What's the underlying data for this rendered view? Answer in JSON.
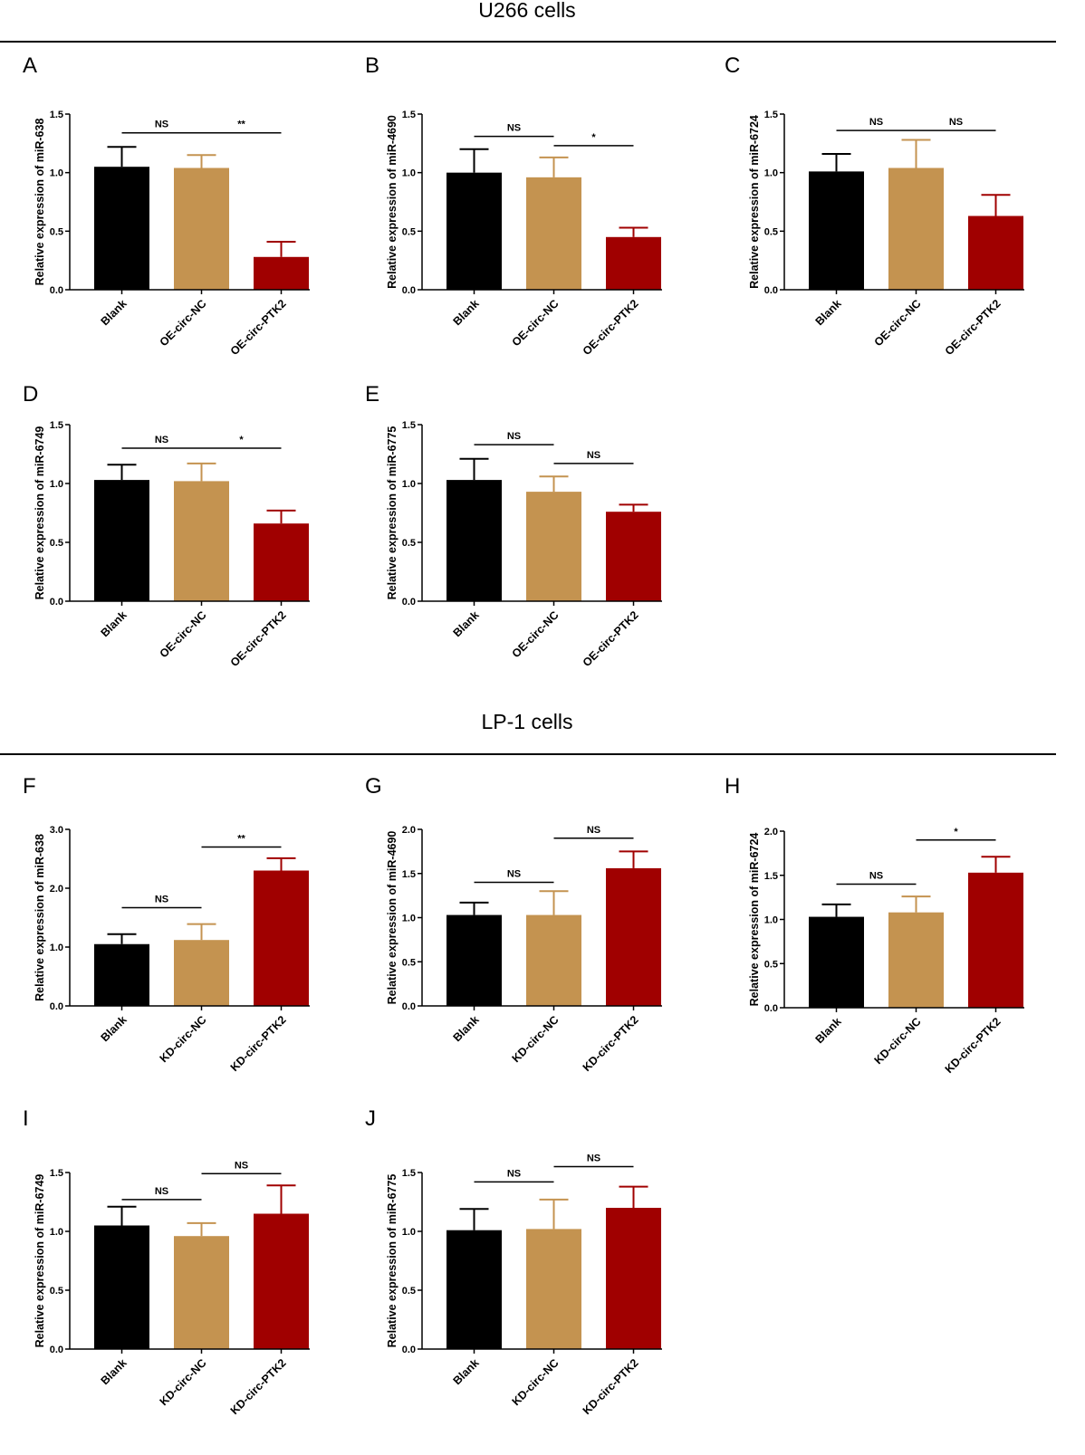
{
  "figure": {
    "sections": [
      {
        "key": "s1",
        "title": "U266 cells"
      },
      {
        "key": "s2",
        "title": "LP-1 cells"
      }
    ]
  },
  "colors": {
    "blank": "#000000",
    "nc": "#C49350",
    "ptk2": "#A00000",
    "axis": "#000000"
  },
  "chart_data": [
    {
      "panel": "A",
      "section": "U266 cells",
      "type": "bar",
      "ylabel": "Relative expression of miR-638",
      "ylim": [
        0,
        1.5
      ],
      "yticks": [
        "0.0",
        "0.5",
        "1.0",
        "1.5"
      ],
      "categories": [
        "Blank",
        "OE-circ-NC",
        "OE-circ-PTK2"
      ],
      "values": [
        1.05,
        1.04,
        0.28
      ],
      "errors": [
        0.17,
        0.11,
        0.13
      ],
      "significance": [
        {
          "from": 0,
          "to": 1,
          "label": "NS",
          "y": 1.34
        },
        {
          "from": 1,
          "to": 2,
          "label": "**",
          "y": 1.34
        }
      ]
    },
    {
      "panel": "B",
      "section": "U266 cells",
      "type": "bar",
      "ylabel": "Relative expression of miR-4690",
      "ylim": [
        0,
        1.5
      ],
      "yticks": [
        "0.0",
        "0.5",
        "1.0",
        "1.5"
      ],
      "categories": [
        "Blank",
        "OE-circ-NC",
        "OE-circ-PTK2"
      ],
      "values": [
        1.0,
        0.96,
        0.45
      ],
      "errors": [
        0.2,
        0.17,
        0.08
      ],
      "significance": [
        {
          "from": 0,
          "to": 1,
          "label": "NS",
          "y": 1.31
        },
        {
          "from": 1,
          "to": 2,
          "label": "*",
          "y": 1.23
        }
      ]
    },
    {
      "panel": "C",
      "section": "U266 cells",
      "type": "bar",
      "ylabel": "Relative expression of miR-6724",
      "ylim": [
        0,
        1.5
      ],
      "yticks": [
        "0.0",
        "0.5",
        "1.0",
        "1.5"
      ],
      "categories": [
        "Blank",
        "OE-circ-NC",
        "OE-circ-PTK2"
      ],
      "values": [
        1.01,
        1.04,
        0.63
      ],
      "errors": [
        0.15,
        0.24,
        0.18
      ],
      "significance": [
        {
          "from": 0,
          "to": 1,
          "label": "NS",
          "y": 1.36
        },
        {
          "from": 1,
          "to": 2,
          "label": "NS",
          "y": 1.36
        }
      ]
    },
    {
      "panel": "D",
      "section": "U266 cells",
      "type": "bar",
      "ylabel": "Relative expression of miR-6749",
      "ylim": [
        0,
        1.5
      ],
      "yticks": [
        "0.0",
        "0.5",
        "1.0",
        "1.5"
      ],
      "categories": [
        "Blank",
        "OE-circ-NC",
        "OE-circ-PTK2"
      ],
      "values": [
        1.03,
        1.02,
        0.66
      ],
      "errors": [
        0.13,
        0.15,
        0.11
      ],
      "significance": [
        {
          "from": 0,
          "to": 1,
          "label": "NS",
          "y": 1.3
        },
        {
          "from": 1,
          "to": 2,
          "label": "*",
          "y": 1.3
        }
      ]
    },
    {
      "panel": "E",
      "section": "U266 cells",
      "type": "bar",
      "ylabel": "Relative expression of miR-6775",
      "ylim": [
        0,
        1.5
      ],
      "yticks": [
        "0.0",
        "0.5",
        "1.0",
        "1.5"
      ],
      "categories": [
        "Blank",
        "OE-circ-NC",
        "OE-circ-PTK2"
      ],
      "values": [
        1.03,
        0.93,
        0.76
      ],
      "errors": [
        0.18,
        0.13,
        0.06
      ],
      "significance": [
        {
          "from": 0,
          "to": 1,
          "label": "NS",
          "y": 1.33
        },
        {
          "from": 1,
          "to": 2,
          "label": "NS",
          "y": 1.17
        }
      ]
    },
    {
      "panel": "F",
      "section": "LP-1 cells",
      "type": "bar",
      "ylabel": "Relative expression of miR-638",
      "ylim": [
        0,
        3.0
      ],
      "yticks": [
        "0.0",
        "1.0",
        "2.0",
        "3.0"
      ],
      "categories": [
        "Blank",
        "KD-circ-NC",
        "KD-circ-PTK2"
      ],
      "values": [
        1.05,
        1.12,
        2.3
      ],
      "errors": [
        0.17,
        0.27,
        0.21
      ],
      "significance": [
        {
          "from": 0,
          "to": 1,
          "label": "NS",
          "y": 1.67
        },
        {
          "from": 1,
          "to": 2,
          "label": "**",
          "y": 2.7
        }
      ]
    },
    {
      "panel": "G",
      "section": "LP-1 cells",
      "type": "bar",
      "ylabel": "Relative expression of miR-4690",
      "ylim": [
        0,
        2.0
      ],
      "yticks": [
        "0.0",
        "0.5",
        "1.0",
        "1.5",
        "2.0"
      ],
      "categories": [
        "Blank",
        "KD-circ-NC",
        "KD-circ-PTK2"
      ],
      "values": [
        1.03,
        1.03,
        1.56
      ],
      "errors": [
        0.14,
        0.27,
        0.19
      ],
      "significance": [
        {
          "from": 0,
          "to": 1,
          "label": "NS",
          "y": 1.4
        },
        {
          "from": 1,
          "to": 2,
          "label": "NS",
          "y": 1.9
        }
      ]
    },
    {
      "panel": "H",
      "section": "LP-1 cells",
      "type": "bar",
      "ylabel": "Relative expression of miR-6724",
      "ylim": [
        0,
        2.0
      ],
      "yticks": [
        "0.0",
        "0.5",
        "1.0",
        "1.5",
        "2.0"
      ],
      "categories": [
        "Blank",
        "KD-circ-NC",
        "KD-circ-PTK2"
      ],
      "values": [
        1.03,
        1.08,
        1.53
      ],
      "errors": [
        0.14,
        0.18,
        0.18
      ],
      "significance": [
        {
          "from": 0,
          "to": 1,
          "label": "NS",
          "y": 1.4
        },
        {
          "from": 1,
          "to": 2,
          "label": "*",
          "y": 1.9
        }
      ]
    },
    {
      "panel": "I",
      "section": "LP-1 cells",
      "type": "bar",
      "ylabel": "Relative expression of miR-6749",
      "ylim": [
        0,
        1.5
      ],
      "yticks": [
        "0.0",
        "0.5",
        "1.0",
        "1.5"
      ],
      "categories": [
        "Blank",
        "KD-circ-NC",
        "KD-circ-PTK2"
      ],
      "values": [
        1.05,
        0.96,
        1.15
      ],
      "errors": [
        0.16,
        0.11,
        0.24
      ],
      "significance": [
        {
          "from": 0,
          "to": 1,
          "label": "NS",
          "y": 1.27
        },
        {
          "from": 1,
          "to": 2,
          "label": "NS",
          "y": 1.49
        }
      ]
    },
    {
      "panel": "J",
      "section": "LP-1 cells",
      "type": "bar",
      "ylabel": "Relative expression of miR-6775",
      "ylim": [
        0,
        1.5
      ],
      "yticks": [
        "0.0",
        "0.5",
        "1.0",
        "1.5"
      ],
      "categories": [
        "Blank",
        "KD-circ-NC",
        "KD-circ-PTK2"
      ],
      "values": [
        1.01,
        1.02,
        1.2
      ],
      "errors": [
        0.18,
        0.25,
        0.18
      ],
      "significance": [
        {
          "from": 0,
          "to": 1,
          "label": "NS",
          "y": 1.42
        },
        {
          "from": 1,
          "to": 2,
          "label": "NS",
          "y": 1.55
        }
      ]
    }
  ]
}
